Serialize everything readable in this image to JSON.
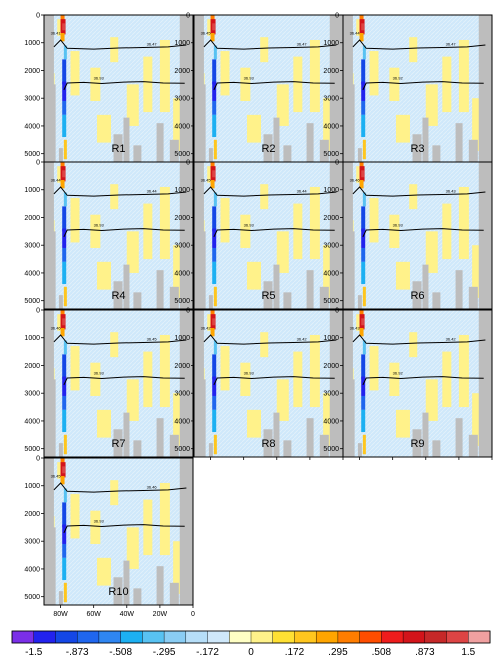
{
  "chart_data": {
    "type": "heatmap",
    "panels": [
      {
        "label": "R1",
        "isopycnal_labels": [
          "36.41",
          "36.47",
          "36.93"
        ]
      },
      {
        "label": "R2",
        "isopycnal_labels": [
          "36.45",
          "36.47",
          "36.93"
        ]
      },
      {
        "label": "R3",
        "isopycnal_labels": [
          "36.44",
          "36.47",
          "36.92"
        ]
      },
      {
        "label": "R4",
        "isopycnal_labels": [
          "36.44",
          "36.44",
          "36.93"
        ]
      },
      {
        "label": "R5",
        "isopycnal_labels": [
          "36.45",
          "36.44",
          "36.93"
        ]
      },
      {
        "label": "R6",
        "isopycnal_labels": [
          "36.46",
          "36.43",
          "36.93"
        ]
      },
      {
        "label": "R7",
        "isopycnal_labels": [
          "36.46",
          "36.45",
          "36.93"
        ]
      },
      {
        "label": "R8",
        "isopycnal_labels": [
          "36.42",
          "36.42",
          "36.93"
        ]
      },
      {
        "label": "R9",
        "isopycnal_labels": [
          "36.43",
          "36.42",
          "36.92"
        ]
      },
      {
        "label": "R10",
        "isopycnal_labels": [
          "36.45",
          "36.46",
          "36.93"
        ]
      }
    ],
    "y_axis": {
      "ticks": [
        "0",
        "1000",
        "2000",
        "3000",
        "4000",
        "5000"
      ],
      "ylim": [
        0,
        5300
      ],
      "inverted": true
    },
    "x_axis": {
      "ticks": [
        "80W",
        "60W",
        "40W",
        "20W",
        "0"
      ],
      "xlim": [
        -90,
        0
      ]
    },
    "colorbar": {
      "tick_labels": [
        "-1.5",
        "-.873",
        "-.508",
        "-.295",
        "-.172",
        "0",
        ".172",
        ".295",
        ".508",
        ".873",
        "1.5"
      ],
      "colors": [
        "#7b2fe8",
        "#2222ee",
        "#1447e6",
        "#1f66ee",
        "#2f86f2",
        "#1cb0f2",
        "#58c2f2",
        "#8acdf4",
        "#b6def8",
        "#cfe8fa",
        "#ffffc4",
        "#fff28a",
        "#ffe033",
        "#ffc61e",
        "#ffa500",
        "#ff7d00",
        "#ff4d00",
        "#ee1c1c",
        "#d3141a",
        "#c62828",
        "#dd4444",
        "#f0a0a0"
      ]
    },
    "grid": false
  }
}
